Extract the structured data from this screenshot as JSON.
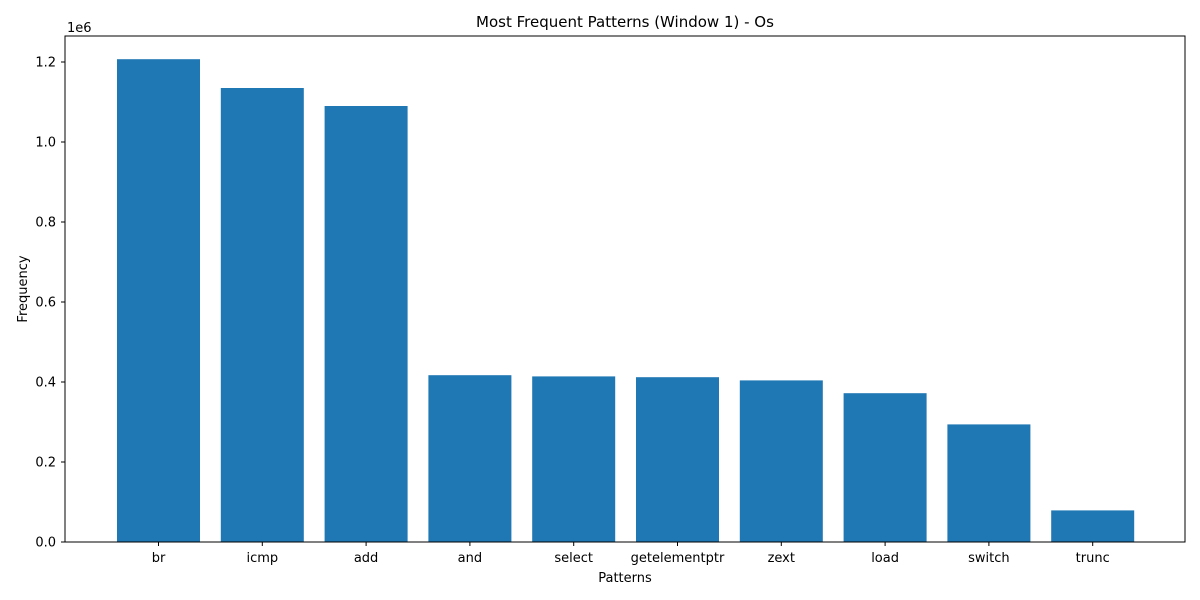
{
  "chart_data": {
    "type": "bar",
    "title": "Most Frequent Patterns (Window 1) - Os",
    "xlabel": "Patterns",
    "ylabel": "Frequency",
    "y_offset_label": "1e6",
    "categories": [
      "br",
      "icmp",
      "add",
      "and",
      "select",
      "getelementptr",
      "zext",
      "load",
      "switch",
      "trunc"
    ],
    "values": [
      1207000,
      1135000,
      1090000,
      417000,
      414000,
      412000,
      404000,
      372000,
      294000,
      79000
    ],
    "ylim": [
      0,
      1265000
    ],
    "y_ticks": [
      0,
      200000,
      400000,
      600000,
      800000,
      1000000,
      1200000
    ],
    "y_tick_labels": [
      "0.0",
      "0.2",
      "0.4",
      "0.6",
      "0.8",
      "1.0",
      "1.2"
    ],
    "bar_color": "#1f77b4",
    "grid": false,
    "legend": "none"
  }
}
